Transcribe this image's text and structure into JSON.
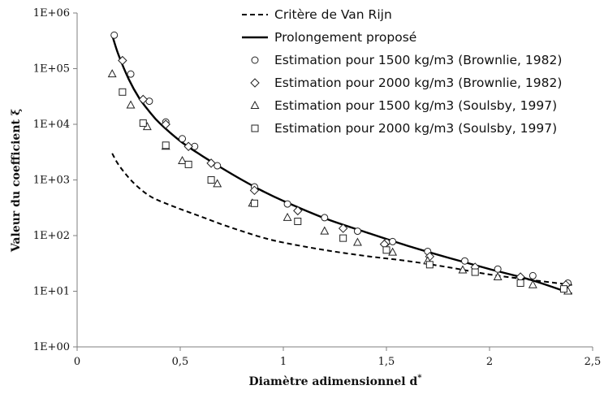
{
  "chart_data": {
    "type": "scatter",
    "title": "",
    "xlabel": "Diamètre adimensionnel d",
    "xlabel_superscript": "*",
    "ylabel": "Valeur du coefficient ξ",
    "xlim": [
      0,
      2.5
    ],
    "ylim": [
      1,
      1000000
    ],
    "y_scale": "log",
    "x_ticks": [
      "0",
      "0,5",
      "1",
      "1,5",
      "2",
      "2,5"
    ],
    "y_ticks": [
      "1E+00",
      "1E+01",
      "1E+02",
      "1E+03",
      "1E+04",
      "1E+05",
      "1E+06"
    ],
    "grid": false,
    "legend_position": "top-right",
    "series": [
      {
        "name": "Critère de Van Rijn",
        "kind": "line",
        "style": "dashed",
        "color": "#000000",
        "x": [
          0.17,
          0.2,
          0.25,
          0.3,
          0.35,
          0.4,
          0.5,
          0.6,
          0.7,
          0.8,
          0.9,
          1.0,
          1.2,
          1.4,
          1.6,
          1.8,
          2.0,
          2.2,
          2.4
        ],
        "y": [
          3000,
          1900,
          1100,
          720,
          520,
          420,
          300,
          220,
          160,
          120,
          92,
          75,
          55,
          43,
          35,
          27,
          20,
          16,
          13
        ]
      },
      {
        "name": "Prolongement proposé",
        "kind": "line",
        "style": "solid",
        "color": "#000000",
        "x": [
          0.17,
          0.2,
          0.25,
          0.3,
          0.35,
          0.4,
          0.5,
          0.6,
          0.7,
          0.8,
          0.9,
          1.0,
          1.2,
          1.4,
          1.6,
          1.8,
          2.0,
          2.2,
          2.4
        ],
        "y": [
          400000,
          180000,
          65000,
          30000,
          17000,
          10500,
          5000,
          2800,
          1650,
          1000,
          630,
          420,
          205,
          115,
          66,
          40,
          25,
          16,
          9
        ]
      },
      {
        "name": "Estimation pour 1500 kg/m3 (Brownlie, 1982)",
        "kind": "marker",
        "marker": "circle",
        "x": [
          0.18,
          0.26,
          0.35,
          0.43,
          0.51,
          0.57,
          0.68,
          0.86,
          1.02,
          1.2,
          1.36,
          1.5,
          1.53,
          1.7,
          1.88,
          2.04,
          2.21,
          2.38
        ],
        "y": [
          400000,
          80000,
          26000,
          11000,
          5500,
          4000,
          1800,
          750,
          370,
          210,
          120,
          75,
          78,
          52,
          35,
          25,
          19,
          14
        ]
      },
      {
        "name": "Estimation pour 2000 kg/m3 (Brownlie, 1982)",
        "kind": "marker",
        "marker": "diamond",
        "x": [
          0.22,
          0.32,
          0.43,
          0.54,
          0.65,
          0.86,
          1.07,
          1.29,
          1.49,
          1.71,
          1.93,
          2.15,
          2.37
        ],
        "y": [
          140000,
          28000,
          10000,
          4000,
          2000,
          650,
          280,
          135,
          70,
          42,
          27,
          18,
          13
        ]
      },
      {
        "name": "Estimation pour 1500 kg/m3 (Soulsby, 1997)",
        "kind": "marker",
        "marker": "triangle",
        "x": [
          0.17,
          0.26,
          0.34,
          0.43,
          0.51,
          0.68,
          0.85,
          1.02,
          1.2,
          1.36,
          1.53,
          1.7,
          1.87,
          2.04,
          2.21,
          2.38
        ],
        "y": [
          80000,
          22000,
          9000,
          4000,
          2200,
          850,
          380,
          210,
          120,
          75,
          50,
          35,
          24,
          18,
          13,
          10
        ]
      },
      {
        "name": "Estimation pour 2000 kg/m3 (Soulsby, 1997)",
        "kind": "marker",
        "marker": "square",
        "x": [
          0.22,
          0.32,
          0.43,
          0.54,
          0.65,
          0.86,
          1.07,
          1.29,
          1.5,
          1.71,
          1.93,
          2.15,
          2.36
        ],
        "y": [
          38000,
          10500,
          4200,
          1900,
          1000,
          380,
          180,
          90,
          55,
          30,
          22,
          14,
          11
        ]
      }
    ]
  }
}
